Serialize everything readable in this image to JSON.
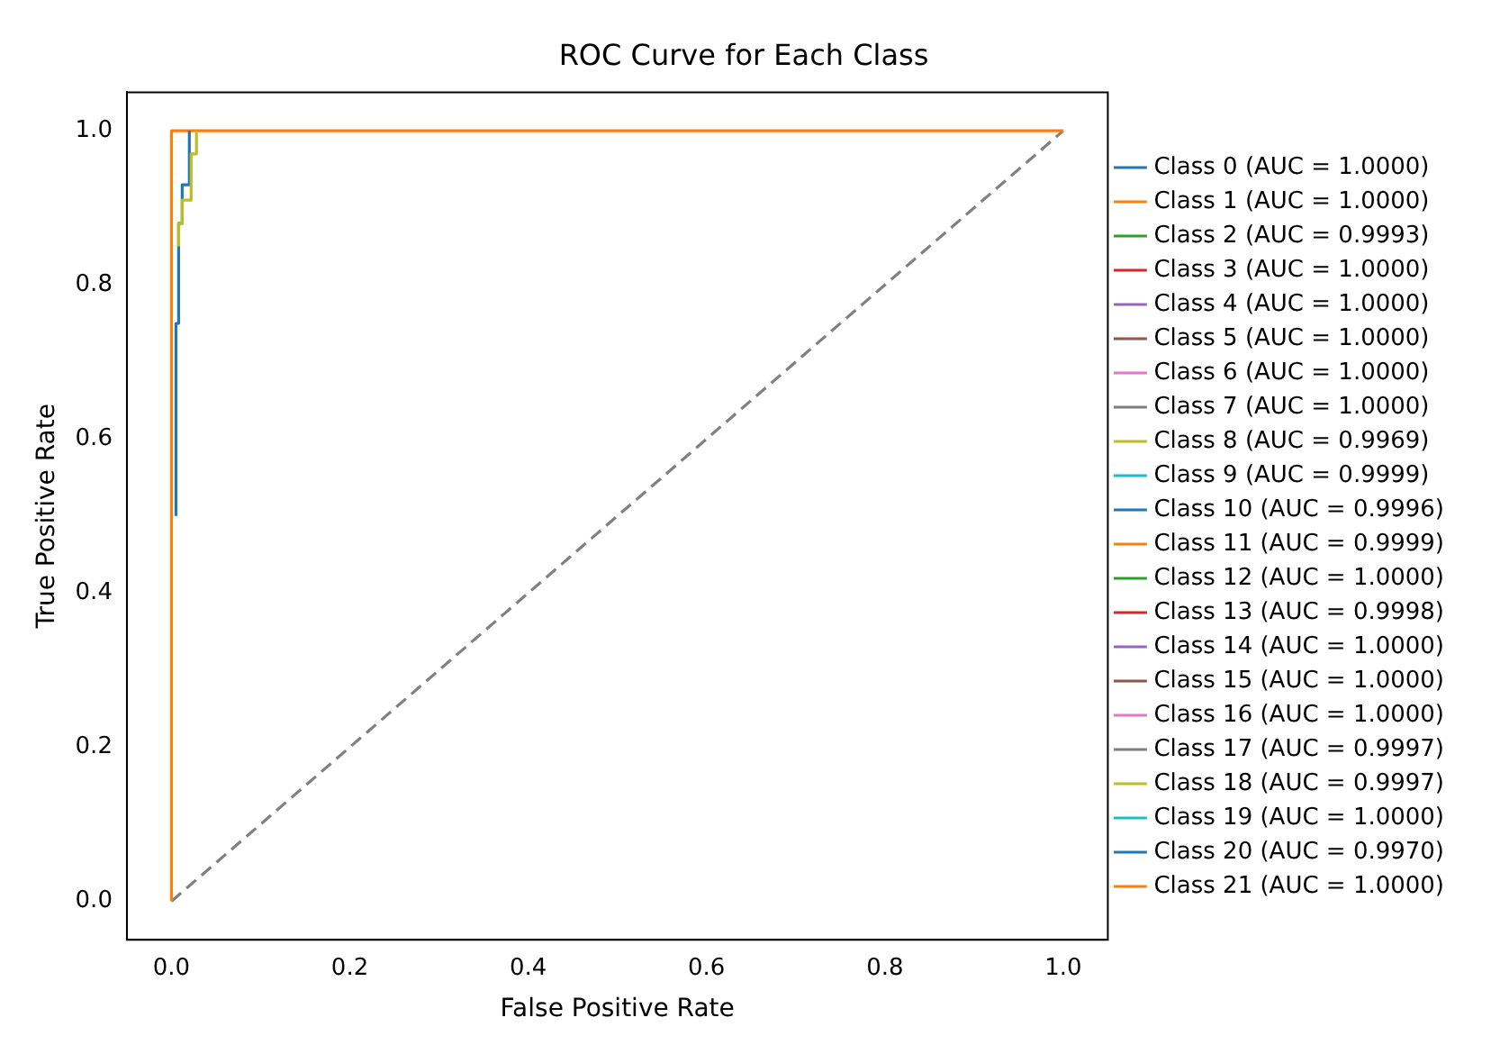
{
  "chart_data": {
    "type": "line",
    "title": "ROC Curve for Each Class",
    "xlabel": "False Positive Rate",
    "ylabel": "True Positive Rate",
    "xlim": [
      -0.05,
      1.05
    ],
    "ylim": [
      -0.05,
      1.05
    ],
    "xticks": [
      {
        "value": 0,
        "label": "0.0"
      },
      {
        "value": 0.2,
        "label": "0.2"
      },
      {
        "value": 0.4,
        "label": "0.4"
      },
      {
        "value": 0.6,
        "label": "0.6"
      },
      {
        "value": 0.8,
        "label": "0.8"
      },
      {
        "value": 1,
        "label": "1.0"
      }
    ],
    "yticks": [
      {
        "value": 0,
        "label": "0.0"
      },
      {
        "value": 0.2,
        "label": "0.2"
      },
      {
        "value": 0.4,
        "label": "0.4"
      },
      {
        "value": 0.6,
        "label": "0.6"
      },
      {
        "value": 0.8,
        "label": "0.8"
      },
      {
        "value": 1,
        "label": "1.0"
      }
    ],
    "grid": false,
    "legend": "right",
    "marker": "none",
    "line_style": "solid",
    "series": [
      {
        "name": "Class 0 (AUC = 1.0000)",
        "color": "#1f77b4"
      },
      {
        "name": "Class 1 (AUC = 1.0000)",
        "color": "#ff7f0e"
      },
      {
        "name": "Class 2 (AUC = 0.9993)",
        "color": "#2ca02c"
      },
      {
        "name": "Class 3 (AUC = 1.0000)",
        "color": "#d62728"
      },
      {
        "name": "Class 4 (AUC = 1.0000)",
        "color": "#9467bd"
      },
      {
        "name": "Class 5 (AUC = 1.0000)",
        "color": "#8c564b"
      },
      {
        "name": "Class 6 (AUC = 1.0000)",
        "color": "#e377c2"
      },
      {
        "name": "Class 7 (AUC = 1.0000)",
        "color": "#7f7f7f"
      },
      {
        "name": "Class 8 (AUC = 0.9969)",
        "color": "#bcbd22",
        "x": [
          0.008,
          0.008,
          0.012,
          0.012,
          0.022,
          0.022,
          0.028,
          0.028
        ],
        "values": [
          0.85,
          0.88,
          0.88,
          0.91,
          0.91,
          0.97,
          0.97,
          1
        ]
      },
      {
        "name": "Class 9 (AUC = 0.9999)",
        "color": "#17becf"
      },
      {
        "name": "Class 10 (AUC = 0.9996)",
        "color": "#1f77b4"
      },
      {
        "name": "Class 11 (AUC = 0.9999)",
        "color": "#ff7f0e"
      },
      {
        "name": "Class 12 (AUC = 1.0000)",
        "color": "#2ca02c"
      },
      {
        "name": "Class 13 (AUC = 0.9998)",
        "color": "#d62728"
      },
      {
        "name": "Class 14 (AUC = 1.0000)",
        "color": "#9467bd"
      },
      {
        "name": "Class 15 (AUC = 1.0000)",
        "color": "#8c564b"
      },
      {
        "name": "Class 16 (AUC = 1.0000)",
        "color": "#e377c2"
      },
      {
        "name": "Class 17 (AUC = 0.9997)",
        "color": "#7f7f7f"
      },
      {
        "name": "Class 18 (AUC = 0.9997)",
        "color": "#bcbd22"
      },
      {
        "name": "Class 19 (AUC = 1.0000)",
        "color": "#17becf"
      },
      {
        "name": "Class 20 (AUC = 0.9970)",
        "color": "#1f77b4",
        "x": [
          0.005,
          0.005,
          0.008,
          0.008,
          0.012,
          0.012,
          0.02,
          0.02
        ],
        "values": [
          0.5,
          0.75,
          0.75,
          0.88,
          0.88,
          0.93,
          0.93,
          1
        ]
      },
      {
        "name": "Class 21 (AUC = 1.0000)",
        "color": "#ff7f0e",
        "x": [
          0,
          0,
          1
        ],
        "values": [
          0,
          1,
          1
        ]
      },
      {
        "color": "#808080",
        "line_style": "dashed",
        "x": [
          0,
          1
        ],
        "values": [
          0,
          1
        ]
      }
    ]
  }
}
